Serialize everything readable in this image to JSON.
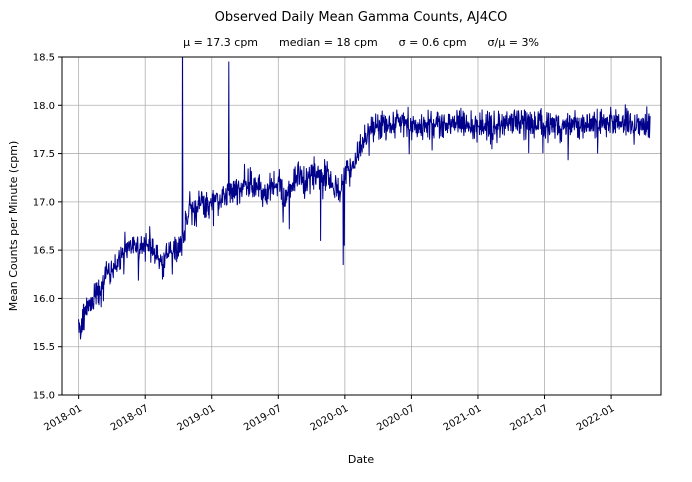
{
  "chart_data": {
    "type": "line",
    "title": "Observed Daily Mean Gamma Counts, AJ4CO",
    "subtitle_display": "μ = 17.3 cpm      median = 18 cpm      σ = 0.6 cpm      σ/μ = 3%",
    "stats": {
      "mu": "μ = 17.3 cpm",
      "median": "median = 18 cpm",
      "sigma": "σ = 0.6 cpm",
      "sigma_over_mu": "σ/μ = 3%"
    },
    "xlabel": "Date",
    "ylabel": "Mean Counts per Minute (cpm)",
    "ylim": [
      15.0,
      18.5
    ],
    "y_ticks": [
      "15.0",
      "15.5",
      "16.0",
      "16.5",
      "17.0",
      "17.5",
      "18.0",
      "18.5"
    ],
    "x_ticks": [
      {
        "label": "2018-01",
        "month": 0
      },
      {
        "label": "2018-07",
        "month": 6
      },
      {
        "label": "2019-01",
        "month": 12
      },
      {
        "label": "2019-07",
        "month": 18
      },
      {
        "label": "2020-01",
        "month": 24
      },
      {
        "label": "2020-07",
        "month": 30
      },
      {
        "label": "2021-01",
        "month": 36
      },
      {
        "label": "2021-07",
        "month": 42
      },
      {
        "label": "2022-01",
        "month": 48
      }
    ],
    "x_range_months": [
      -1.5,
      52.5
    ],
    "grid": true,
    "grid_color": "#b0b0b0",
    "axis_color": "#000000",
    "series": [
      {
        "name": "daily-mean-gamma-counts",
        "color": "#00008b",
        "start_month": 0,
        "end_month": 51.5,
        "noise_amplitude": 0.15,
        "trend_anchors": [
          [
            0,
            15.72
          ],
          [
            0.3,
            15.78
          ],
          [
            1,
            15.95
          ],
          [
            2,
            16.1
          ],
          [
            3,
            16.3
          ],
          [
            4,
            16.45
          ],
          [
            4.8,
            16.55
          ],
          [
            5.5,
            16.5
          ],
          [
            6.2,
            16.6
          ],
          [
            7,
            16.45
          ],
          [
            7.6,
            16.35
          ],
          [
            8.2,
            16.5
          ],
          [
            8.8,
            16.45
          ],
          [
            9.2,
            16.55
          ],
          [
            9.6,
            16.75
          ],
          [
            10,
            16.95
          ],
          [
            10.5,
            16.9
          ],
          [
            11,
            17.0
          ],
          [
            11.5,
            16.95
          ],
          [
            12,
            17.0
          ],
          [
            13,
            17.05
          ],
          [
            14,
            17.1
          ],
          [
            15,
            17.2
          ],
          [
            16,
            17.15
          ],
          [
            17,
            17.1
          ],
          [
            18,
            17.2
          ],
          [
            18.6,
            17.05
          ],
          [
            19.2,
            17.15
          ],
          [
            19.8,
            17.3
          ],
          [
            20.5,
            17.2
          ],
          [
            21,
            17.3
          ],
          [
            21.6,
            17.25
          ],
          [
            22.2,
            17.3
          ],
          [
            23,
            17.15
          ],
          [
            23.6,
            17.1
          ],
          [
            24,
            17.3
          ],
          [
            24.5,
            17.35
          ],
          [
            25,
            17.45
          ],
          [
            25.6,
            17.6
          ],
          [
            26.2,
            17.75
          ],
          [
            27,
            17.8
          ],
          [
            28,
            17.78
          ],
          [
            29,
            17.82
          ],
          [
            30,
            17.78
          ],
          [
            32,
            17.8
          ],
          [
            34,
            17.82
          ],
          [
            36,
            17.78
          ],
          [
            38,
            17.8
          ],
          [
            40,
            17.82
          ],
          [
            42,
            17.8
          ],
          [
            44,
            17.78
          ],
          [
            46,
            17.82
          ],
          [
            48,
            17.85
          ],
          [
            50,
            17.8
          ],
          [
            51.5,
            17.8
          ]
        ],
        "spikes": [
          [
            0.15,
            15.58
          ],
          [
            7.55,
            16.2
          ],
          [
            9.35,
            18.85
          ],
          [
            13.55,
            18.45
          ],
          [
            19.0,
            16.72
          ],
          [
            21.8,
            16.6
          ],
          [
            23.85,
            16.35
          ],
          [
            23.95,
            16.55
          ]
        ]
      }
    ]
  }
}
